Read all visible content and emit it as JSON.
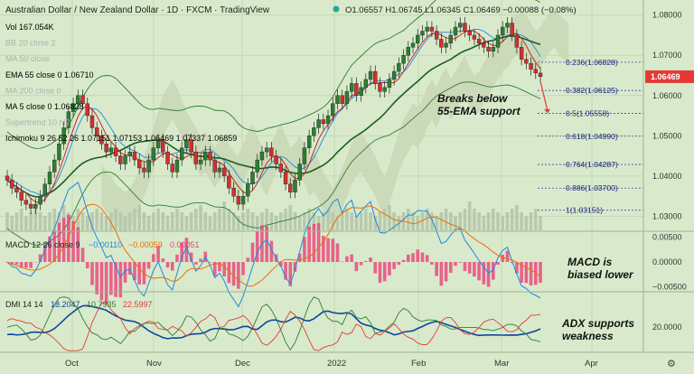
{
  "header": {
    "symbol": "Australian Dollar / New Zealand Dollar · 1D · FXCM · TradingView",
    "ohlc": "O1.06557  H1.06745  L1.06345  C1.06469  −0.00088 (−0.08%)"
  },
  "legend": [
    {
      "text": "Vol  167.054K",
      "color": "#000000"
    },
    {
      "text": "BB 20 close 2",
      "color": "#b0b0b0"
    },
    {
      "text": "MA 50 close",
      "color": "#b0b0b0"
    },
    {
      "text": "EMA 55 close 0  1.06710",
      "color": "#000000"
    },
    {
      "text": "MA 200 close 0",
      "color": "#b0b0b0"
    },
    {
      "text": "MA 5 close 0  1.06828",
      "color": "#000000"
    },
    {
      "text": "Supertrend 10 hl2",
      "color": "#b0b0b0"
    },
    {
      "text": "Ichimoku 9 26 52 26  1.07151  1.07153  1.06469  1.07337  1.06859",
      "color": "#000000"
    }
  ],
  "annotations": {
    "breaks": "Breaks below\n55-EMA support",
    "macd": "MACD is\nbiased lower",
    "adx": "ADX supports\nweakness"
  },
  "macd_legend": {
    "label": "MACD 12 26 close 9",
    "v1": "−0.00110",
    "v2": "−0.00059",
    "v3": "0.00051"
  },
  "dmi_legend": {
    "label": "DMI 14 14",
    "v1": "18.2047",
    "v2": "10.7935",
    "v3": "22.5997"
  },
  "colors": {
    "background": "#d8eacb",
    "up": "#2e7d32",
    "down": "#d32f2f",
    "ema55": "#1b5e20",
    "ma5": "#c62828",
    "bb": "#2e7d32",
    "cloud": "#c9d7b5",
    "price_tag": "#e53935",
    "macd": "#1e88e5",
    "signal": "#ef6c00",
    "hist": "#ec407a",
    "adx": "#0d47a1",
    "di_plus": "#2e7d32",
    "di_minus": "#e53935",
    "fib": "#3949ab"
  },
  "chart_data": {
    "type": "candlestick",
    "x_ticks": [
      "Oct",
      "Nov",
      "Dec",
      "2022",
      "Feb",
      "Mar",
      "Apr"
    ],
    "y_ticks": [
      "1.08000",
      "1.07000",
      "1.06000",
      "1.05000",
      "1.04000",
      "1.03000"
    ],
    "ylim": [
      1.0265,
      1.0815
    ],
    "last_price": "1.06469",
    "last_price_value": 1.06469,
    "fib_levels": [
      {
        "label": "0.236(1.06828)",
        "value": 1.06828
      },
      {
        "label": "0.382(1.06125)",
        "value": 1.06125
      },
      {
        "label": "0.5(1.05558)",
        "value": 1.05558
      },
      {
        "label": "0.618(1.04990)",
        "value": 1.0499
      },
      {
        "label": "0.764(1.04287)",
        "value": 1.04287
      },
      {
        "label": "0.886(1.03700)",
        "value": 1.037
      },
      {
        "label": "1(1.03151)",
        "value": 1.03151
      }
    ],
    "close_series": [
      1.039,
      1.037,
      1.036,
      1.034,
      1.033,
      1.032,
      1.033,
      1.035,
      1.038,
      1.041,
      1.044,
      1.048,
      1.052,
      1.056,
      1.058,
      1.06,
      1.058,
      1.055,
      1.052,
      1.05,
      1.048,
      1.046,
      1.047,
      1.045,
      1.043,
      1.045,
      1.046,
      1.044,
      1.042,
      1.041,
      1.044,
      1.047,
      1.049,
      1.046,
      1.043,
      1.041,
      1.044,
      1.047,
      1.049,
      1.046,
      1.043,
      1.044,
      1.046,
      1.044,
      1.041,
      1.042,
      1.04,
      1.037,
      1.035,
      1.033,
      1.035,
      1.038,
      1.041,
      1.044,
      1.046,
      1.047,
      1.045,
      1.043,
      1.041,
      1.038,
      1.036,
      1.039,
      1.043,
      1.047,
      1.05,
      1.052,
      1.054,
      1.053,
      1.055,
      1.058,
      1.06,
      1.058,
      1.061,
      1.063,
      1.06,
      1.062,
      1.064,
      1.066,
      1.063,
      1.061,
      1.062,
      1.064,
      1.066,
      1.068,
      1.07,
      1.072,
      1.073,
      1.075,
      1.076,
      1.077,
      1.076,
      1.074,
      1.072,
      1.073,
      1.075,
      1.077,
      1.078,
      1.076,
      1.075,
      1.074,
      1.073,
      1.072,
      1.071,
      1.072,
      1.075,
      1.077,
      1.078,
      1.075,
      1.072,
      1.069,
      1.068,
      1.0665,
      1.0656,
      1.0647
    ],
    "volume": [
      0.5,
      0.4,
      0.5,
      0.6,
      0.4,
      0.5,
      0.6,
      0.5,
      0.4,
      0.5,
      0.6,
      0.5,
      0.7,
      0.5,
      0.4,
      0.6,
      0.5,
      0.4,
      0.5,
      0.6,
      0.5,
      0.4,
      0.5,
      0.6,
      0.5,
      0.4,
      0.5,
      0.6,
      0.7,
      0.5,
      0.4,
      0.5,
      0.6,
      0.5,
      0.4,
      0.5,
      0.6,
      0.5,
      0.4,
      0.5,
      0.6,
      0.7,
      0.5,
      0.4,
      0.5,
      0.6,
      0.8,
      0.6,
      0.5,
      0.4,
      0.5,
      0.6,
      0.5,
      0.4,
      0.5,
      0.6,
      0.5,
      0.4,
      0.5,
      0.6,
      0.7,
      0.5,
      0.4,
      0.5,
      0.6,
      0.5,
      0.4,
      0.5,
      0.6,
      0.5,
      0.4,
      0.5,
      0.6,
      0.5,
      0.4,
      0.5,
      0.6,
      0.5,
      0.4,
      0.5,
      0.6,
      0.7,
      0.5,
      0.4,
      0.5,
      0.6,
      0.5,
      0.4,
      0.5,
      0.6,
      0.5,
      0.4,
      0.5,
      0.6,
      0.5,
      0.4,
      0.5,
      0.6,
      0.8,
      0.6,
      0.5,
      0.4,
      0.5,
      0.6,
      0.5,
      0.4,
      0.5,
      0.6,
      0.7,
      0.5,
      0.4,
      0.5,
      0.6,
      0.4
    ],
    "macd": {
      "y_ticks": [
        "0.00500",
        "0.00000",
        "−0.00500"
      ],
      "ylim": [
        -0.0058,
        0.0058
      ]
    },
    "dmi": {
      "y_ticks": [
        "20.0000"
      ],
      "ylim": [
        5,
        40
      ]
    }
  }
}
